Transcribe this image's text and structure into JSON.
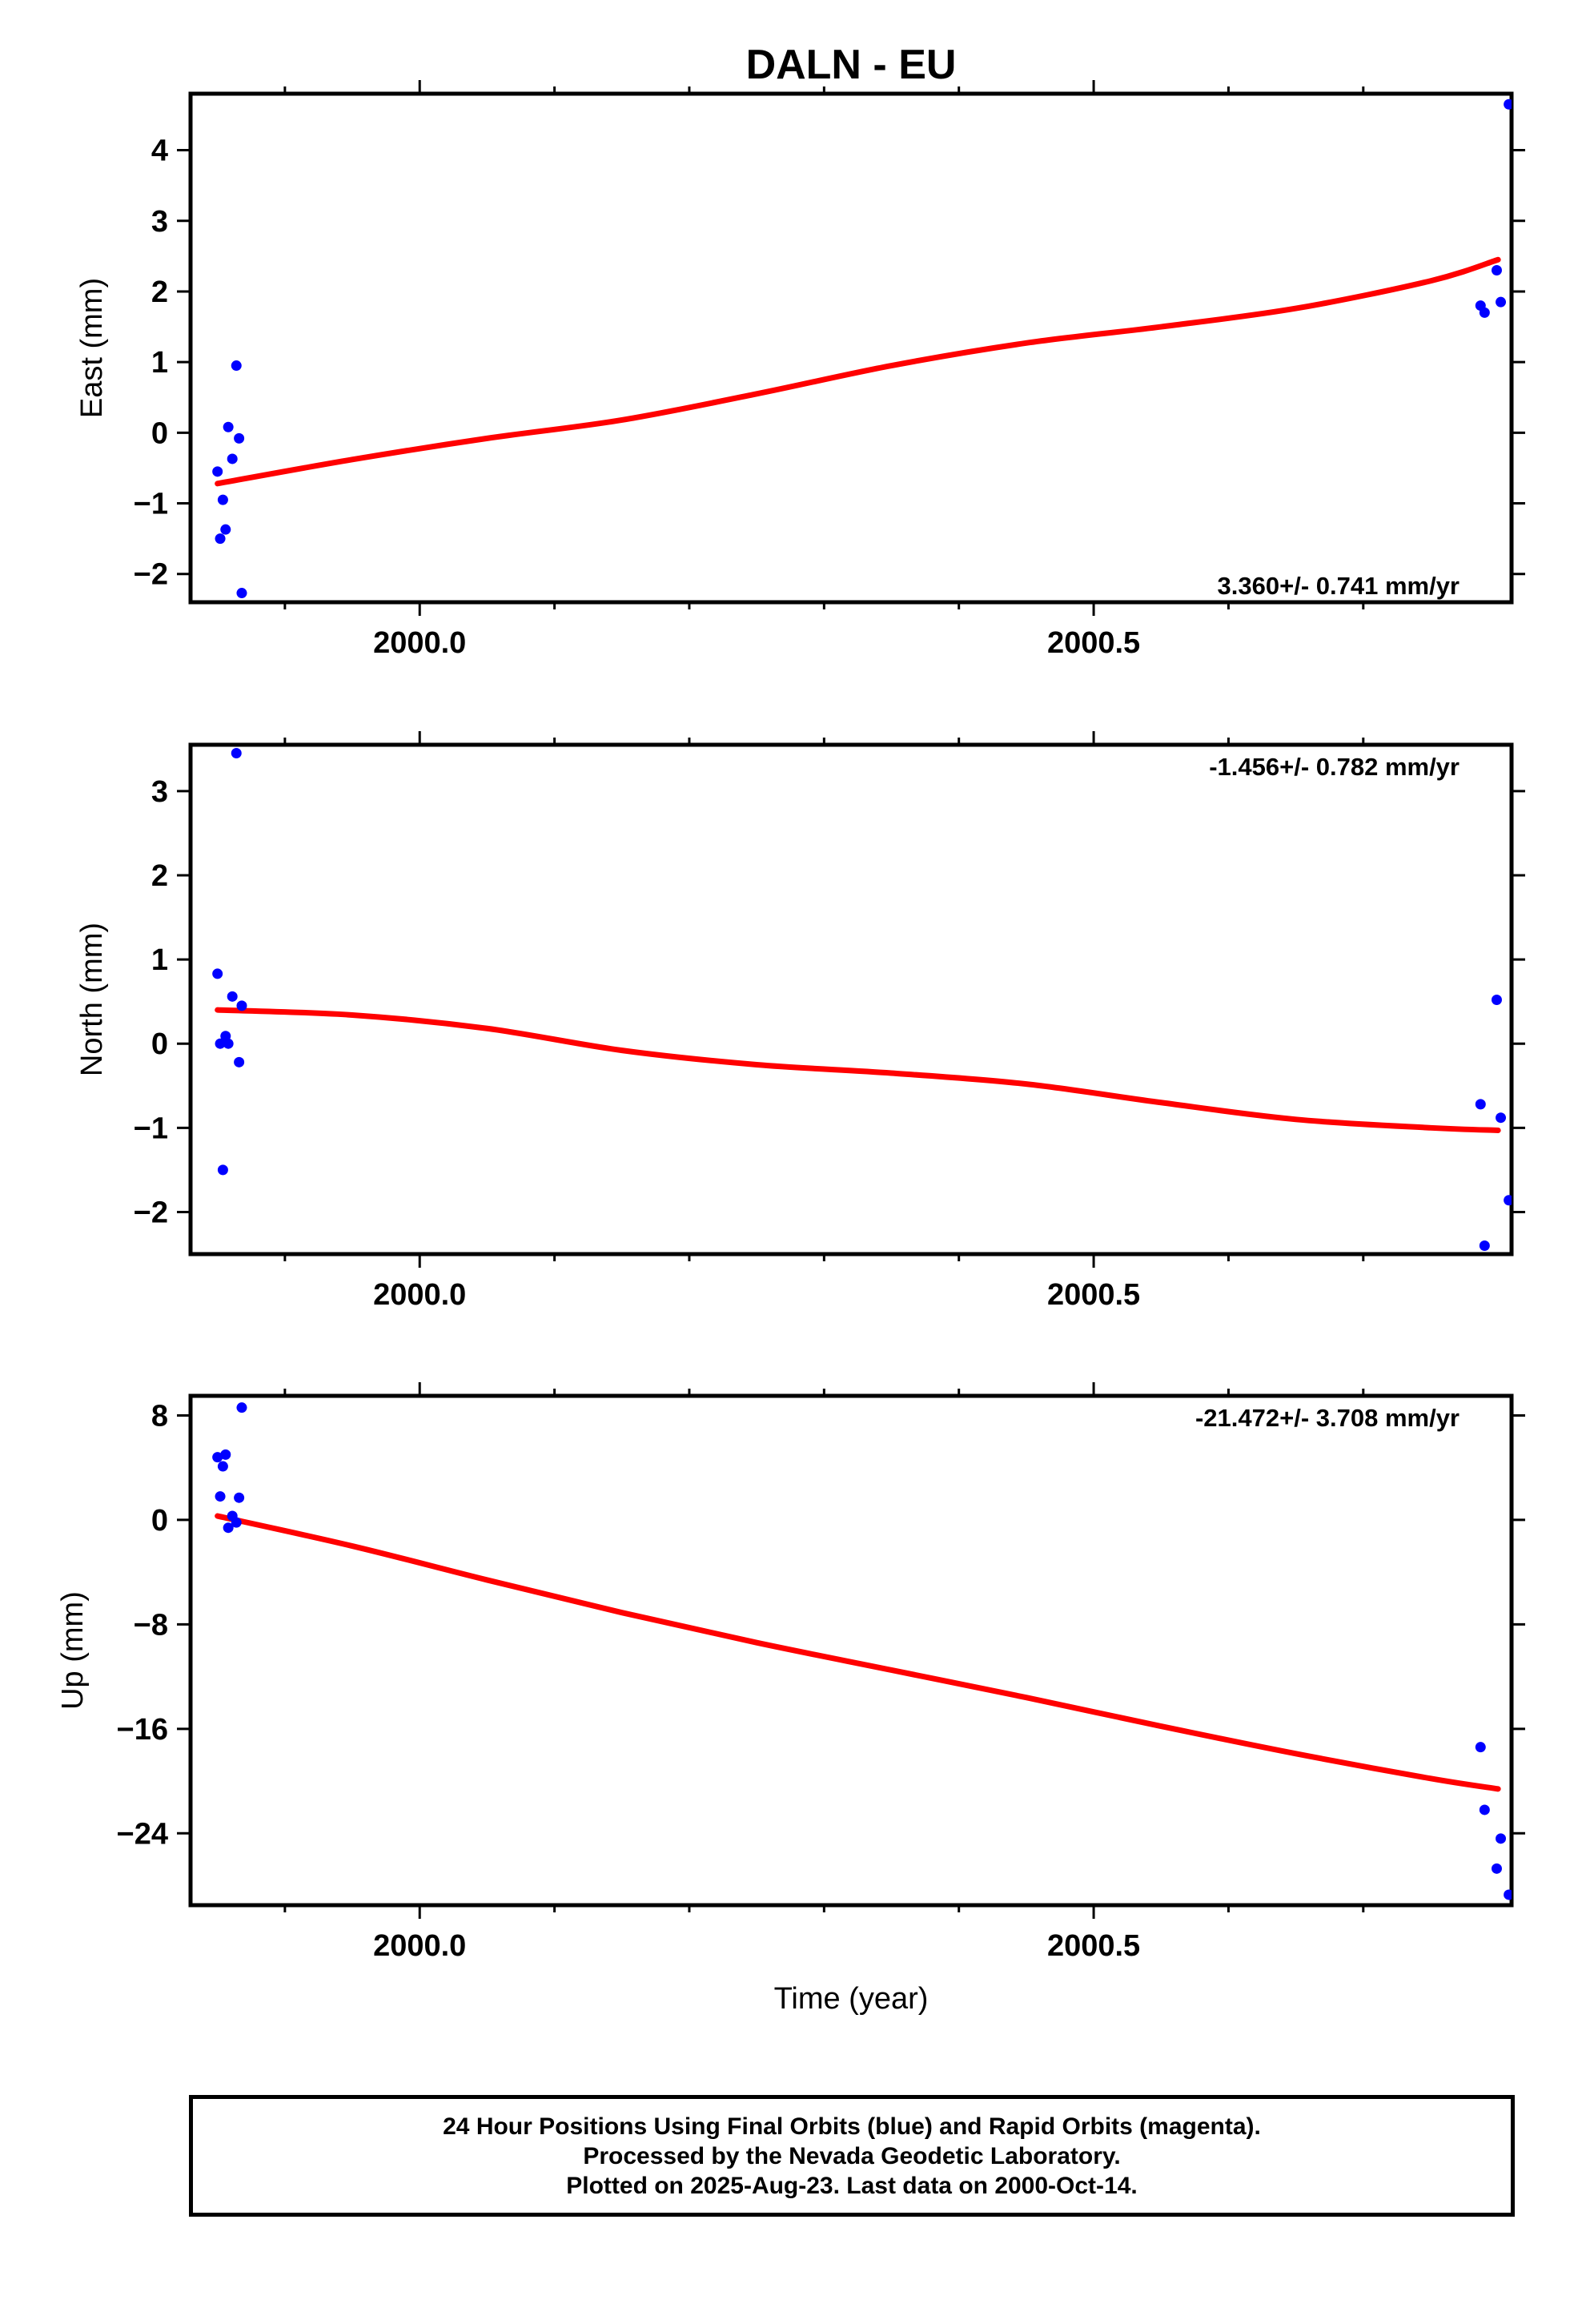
{
  "chart_title": "DALN - EU",
  "xlabel": "Time (year)",
  "colors": {
    "points": "#0000ff",
    "fit": "#ff0000",
    "axes": "#000000"
  },
  "chart_data": [
    {
      "type": "scatter",
      "ylabel": "East (mm)",
      "xlim": [
        1999.83,
        2000.81
      ],
      "ylim": [
        -2.4,
        4.8
      ],
      "xticks": [
        2000.0,
        2000.5
      ],
      "xtick_labels": [
        "2000.0",
        "2000.5"
      ],
      "yticks": [
        -2,
        -1,
        0,
        1,
        2,
        3,
        4
      ],
      "ytick_labels": [
        "−2",
        "−1",
        "0",
        "1",
        "2",
        "3",
        "4"
      ],
      "rate_label": "3.360+/- 0.741 mm/yr",
      "rate_position": "bottom-right",
      "series": [
        {
          "x": [
            1999.85,
            1999.852,
            1999.854,
            1999.856,
            1999.858,
            1999.861,
            1999.864,
            1999.866,
            1999.868,
            2000.787,
            2000.79,
            2000.799,
            2000.802,
            2000.808
          ],
          "y": [
            -0.55,
            -1.5,
            -0.95,
            -1.37,
            0.08,
            -0.37,
            0.95,
            -0.08,
            -2.27,
            1.8,
            1.7,
            2.3,
            1.85,
            4.65
          ]
        }
      ],
      "fit": {
        "x": [
          1999.85,
          1999.95,
          2000.05,
          2000.15,
          2000.25,
          2000.35,
          2000.45,
          2000.55,
          2000.65,
          2000.75,
          2000.8
        ],
        "y": [
          -0.72,
          -0.38,
          -0.08,
          0.18,
          0.55,
          0.95,
          1.27,
          1.5,
          1.76,
          2.15,
          2.45
        ]
      }
    },
    {
      "type": "scatter",
      "ylabel": "North (mm)",
      "xlim": [
        1999.83,
        2000.81
      ],
      "ylim": [
        -2.5,
        3.55
      ],
      "xticks": [
        2000.0,
        2000.5
      ],
      "xtick_labels": [
        "2000.0",
        "2000.5"
      ],
      "yticks": [
        -2,
        -1,
        0,
        1,
        2,
        3
      ],
      "ytick_labels": [
        "−2",
        "−1",
        "0",
        "1",
        "2",
        "3"
      ],
      "rate_label": "-1.456+/- 0.782 mm/yr",
      "rate_position": "top-right",
      "series": [
        {
          "x": [
            1999.85,
            1999.852,
            1999.854,
            1999.856,
            1999.858,
            1999.861,
            1999.864,
            1999.866,
            1999.868,
            2000.787,
            2000.79,
            2000.799,
            2000.802,
            2000.808
          ],
          "y": [
            0.83,
            0.0,
            -1.5,
            0.09,
            0.0,
            0.56,
            3.45,
            -0.22,
            0.45,
            -0.72,
            -2.4,
            0.52,
            -0.88,
            -1.86
          ]
        }
      ],
      "fit": {
        "x": [
          1999.85,
          1999.95,
          2000.05,
          2000.15,
          2000.25,
          2000.35,
          2000.45,
          2000.55,
          2000.65,
          2000.75,
          2000.8
        ],
        "y": [
          0.4,
          0.34,
          0.18,
          -0.08,
          -0.25,
          -0.35,
          -0.48,
          -0.7,
          -0.9,
          -1.0,
          -1.03
        ]
      }
    },
    {
      "type": "scatter",
      "ylabel": "Up (mm)",
      "xlim": [
        1999.83,
        2000.81
      ],
      "ylim": [
        -29.5,
        9.5
      ],
      "xticks": [
        2000.0,
        2000.5
      ],
      "xtick_labels": [
        "2000.0",
        "2000.5"
      ],
      "yticks": [
        -24,
        -16,
        -8,
        0,
        8
      ],
      "ytick_labels": [
        "−24",
        "−16",
        "−8",
        "0",
        "8"
      ],
      "rate_label": "-21.472+/- 3.708 mm/yr",
      "rate_position": "top-right",
      "series": [
        {
          "x": [
            1999.85,
            1999.852,
            1999.854,
            1999.856,
            1999.858,
            1999.861,
            1999.864,
            1999.866,
            1999.868,
            2000.787,
            2000.79,
            2000.799,
            2000.802,
            2000.808
          ],
          "y": [
            4.8,
            1.8,
            4.1,
            5.0,
            -0.6,
            0.3,
            -0.2,
            1.7,
            8.6,
            -17.4,
            -22.2,
            -26.7,
            -24.4,
            -28.7
          ]
        }
      ],
      "fit": {
        "x": [
          1999.85,
          1999.95,
          2000.05,
          2000.15,
          2000.25,
          2000.35,
          2000.45,
          2000.55,
          2000.65,
          2000.75,
          2000.8
        ],
        "y": [
          0.3,
          -2.0,
          -4.6,
          -7.1,
          -9.4,
          -11.5,
          -13.6,
          -15.8,
          -17.9,
          -19.8,
          -20.6
        ]
      }
    }
  ],
  "footer": {
    "line1": "24 Hour Positions Using Final Orbits (blue) and Rapid Orbits (magenta).",
    "line2": "Processed by the Nevada Geodetic Laboratory.",
    "line3": "Plotted on 2025-Aug-23. Last data on 2000-Oct-14."
  }
}
